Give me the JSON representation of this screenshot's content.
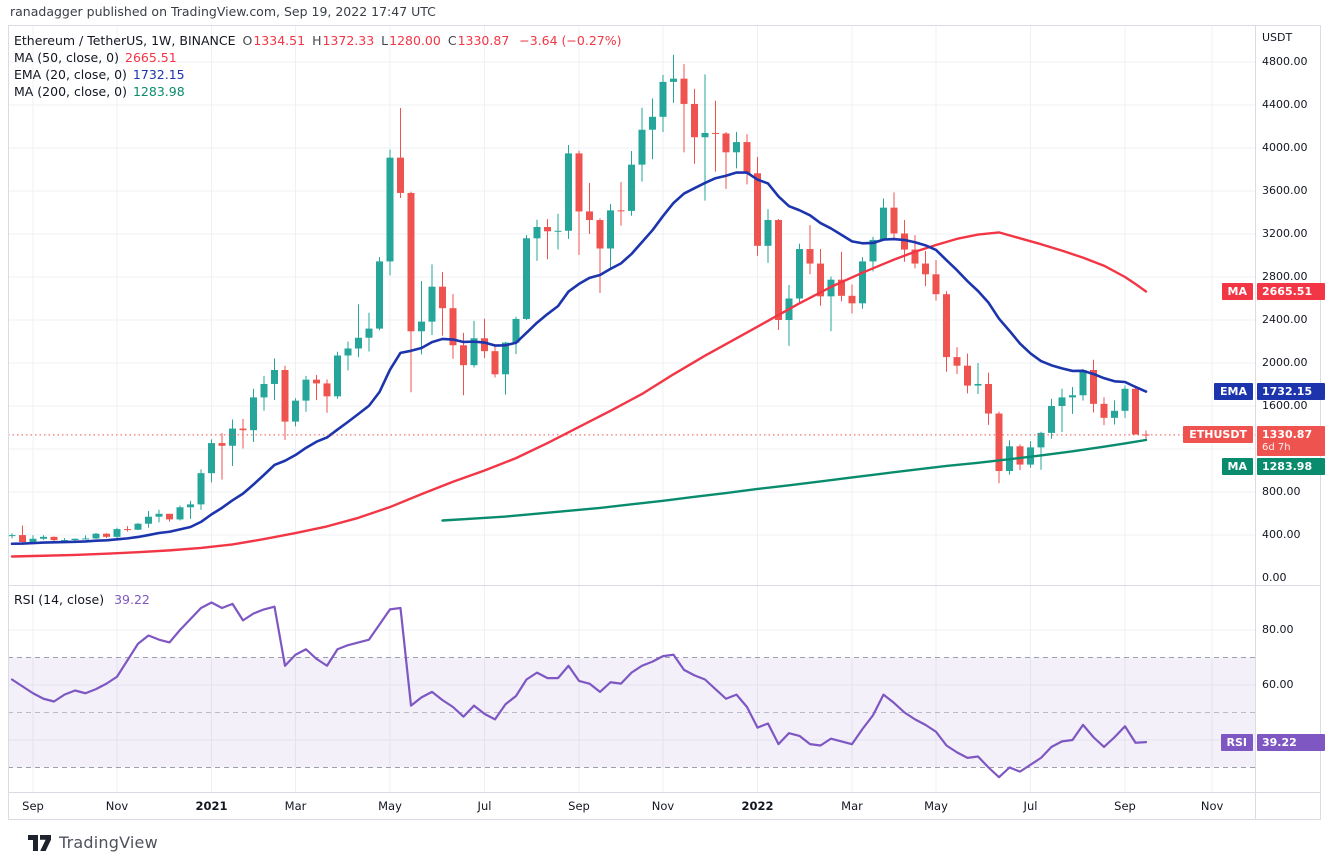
{
  "published_bar": {
    "text": "ranadagger published on TradingView.com, Sep 19, 2022 17:47 UTC"
  },
  "legend": {
    "symbol": "Ethereum / TetherUS, 1W, BINANCE",
    "ohlc": [
      {
        "k": "O",
        "v": "1334.51"
      },
      {
        "k": "H",
        "v": "1372.33"
      },
      {
        "k": "L",
        "v": "1280.00"
      },
      {
        "k": "C",
        "v": "1330.87"
      }
    ],
    "change": "−3.64 (−0.27%)",
    "indicators": [
      {
        "label": "MA (50, close, 0)",
        "value": "2665.51",
        "color": "#f23645"
      },
      {
        "label": "EMA (20, close, 0)",
        "value": "1732.15",
        "color": "#1c35ac"
      },
      {
        "label": "MA (200, close, 0)",
        "value": "1283.98",
        "color": "#098c6e"
      }
    ]
  },
  "rsi_legend": {
    "label": "RSI (14, close)",
    "value": "39.22",
    "color": "#7e57c2"
  },
  "price_axis": {
    "unit": "USDT",
    "ticks": [
      4800,
      4400,
      4000,
      3600,
      3200,
      2800,
      2400,
      2000,
      1600,
      800,
      400,
      0
    ],
    "grid_levels": [
      400,
      800,
      1200,
      1600,
      2000,
      2400,
      2800,
      3200,
      3600,
      4000,
      4400,
      4800
    ],
    "badges": [
      {
        "name": "ma50-badge",
        "label": "MA",
        "value": "2665.51",
        "color": "#f23645",
        "price": 2665.51
      },
      {
        "name": "ema20-badge",
        "label": "EMA",
        "value": "1732.15",
        "color": "#1c35ac",
        "price": 1732.15
      },
      {
        "name": "ethusdt-badge",
        "label": "ETHUSDT",
        "value": "1330.87",
        "sub": "6d 7h",
        "color": "#ef5350",
        "price": 1330.87
      },
      {
        "name": "ma200-badge",
        "label": "MA",
        "value": "1283.98",
        "color": "#098c6e",
        "price": 1283.98,
        "y_override": 466
      }
    ]
  },
  "rsi_axis": {
    "ticks": [
      80,
      60
    ],
    "grid": [
      80,
      60,
      40
    ],
    "dashed_levels": [
      70,
      50,
      30
    ],
    "band": [
      30,
      70
    ],
    "badge": {
      "label": "RSI",
      "value": "39.22",
      "color": "#7e57c2",
      "level": 39.22
    }
  },
  "footer": {
    "brand": "TradingView"
  },
  "chart_data": {
    "type": "candlestick",
    "title": "Ethereum / TetherUS, 1W, BINANCE",
    "interval": "1W",
    "ylabel": "USDT",
    "ylim": [
      0,
      5140
    ],
    "last_price": 1330.87,
    "colors": {
      "up": "#26a69a",
      "down": "#ef5350",
      "ma50": "#f23645",
      "ema20": "#1c35ac",
      "ma200": "#098c6e",
      "rsi": "#7e57c2",
      "grid": "#eef0f4",
      "border": "#d9dce3",
      "dashed": "#8b8fa0"
    },
    "time_ticks": [
      {
        "label": "Sep",
        "i": 2,
        "major": false
      },
      {
        "label": "Nov",
        "i": 10,
        "major": false
      },
      {
        "label": "2021",
        "i": 19,
        "major": true
      },
      {
        "label": "Mar",
        "i": 27,
        "major": false
      },
      {
        "label": "May",
        "i": 36,
        "major": false
      },
      {
        "label": "Jul",
        "i": 45,
        "major": false
      },
      {
        "label": "Sep",
        "i": 54,
        "major": false
      },
      {
        "label": "Nov",
        "i": 62,
        "major": false
      },
      {
        "label": "2022",
        "i": 71,
        "major": true
      },
      {
        "label": "Mar",
        "i": 80,
        "major": false
      },
      {
        "label": "May",
        "i": 88,
        "major": false
      },
      {
        "label": "Jul",
        "i": 97,
        "major": false
      },
      {
        "label": "Sep",
        "i": 106,
        "major": false
      },
      {
        "label": "Nov",
        "i": 114.3,
        "major": false
      }
    ],
    "candles": [
      [
        395,
        416,
        369,
        399
      ],
      [
        399,
        488,
        311,
        335
      ],
      [
        335,
        398,
        316,
        365
      ],
      [
        365,
        398,
        355,
        383
      ],
      [
        383,
        386,
        325,
        352
      ],
      [
        352,
        371,
        340,
        353
      ],
      [
        353,
        368,
        333,
        365
      ],
      [
        365,
        397,
        357,
        368
      ],
      [
        368,
        420,
        364,
        412
      ],
      [
        412,
        416,
        372,
        383
      ],
      [
        383,
        468,
        370,
        455
      ],
      [
        455,
        483,
        433,
        449
      ],
      [
        449,
        510,
        445,
        505
      ],
      [
        505,
        623,
        469,
        570
      ],
      [
        570,
        635,
        518,
        597
      ],
      [
        597,
        598,
        524,
        545
      ],
      [
        545,
        674,
        535,
        658
      ],
      [
        658,
        718,
        550,
        685
      ],
      [
        685,
        1011,
        634,
        975
      ],
      [
        975,
        1290,
        890,
        1255
      ],
      [
        1255,
        1348,
        915,
        1230
      ],
      [
        1230,
        1475,
        1042,
        1390
      ],
      [
        1390,
        1480,
        1205,
        1375
      ],
      [
        1375,
        1760,
        1265,
        1680
      ],
      [
        1680,
        1880,
        1556,
        1805
      ],
      [
        1805,
        2042,
        1655,
        1935
      ],
      [
        1935,
        1975,
        1285,
        1455
      ],
      [
        1455,
        1672,
        1410,
        1650
      ],
      [
        1650,
        1880,
        1547,
        1845
      ],
      [
        1845,
        1890,
        1655,
        1810
      ],
      [
        1810,
        1848,
        1537,
        1690
      ],
      [
        1690,
        2105,
        1668,
        2070
      ],
      [
        2070,
        2200,
        1930,
        2135
      ],
      [
        2135,
        2545,
        2055,
        2235
      ],
      [
        2235,
        2468,
        2107,
        2320
      ],
      [
        2320,
        2985,
        2305,
        2945
      ],
      [
        2945,
        3985,
        2815,
        3910
      ],
      [
        3910,
        4372,
        3535,
        3582
      ],
      [
        3582,
        3593,
        1728,
        2295
      ],
      [
        2295,
        2762,
        2080,
        2385
      ],
      [
        2385,
        2917,
        2260,
        2710
      ],
      [
        2710,
        2847,
        2255,
        2510
      ],
      [
        2510,
        2641,
        2040,
        2165
      ],
      [
        2165,
        2280,
        1700,
        1980
      ],
      [
        1980,
        2392,
        1958,
        2230
      ],
      [
        2230,
        2412,
        2045,
        2110
      ],
      [
        2110,
        2175,
        1865,
        1895
      ],
      [
        1895,
        2195,
        1706,
        2190
      ],
      [
        2190,
        2430,
        2083,
        2410
      ],
      [
        2410,
        3190,
        2400,
        3160
      ],
      [
        3160,
        3333,
        2950,
        3265
      ],
      [
        3265,
        3338,
        2965,
        3225
      ],
      [
        3225,
        3388,
        3057,
        3230
      ],
      [
        3230,
        4028,
        3155,
        3950
      ],
      [
        3950,
        3975,
        3005,
        3410
      ],
      [
        3410,
        3676,
        3200,
        3330
      ],
      [
        3330,
        3345,
        2651,
        3065
      ],
      [
        3065,
        3480,
        2885,
        3420
      ],
      [
        3420,
        3683,
        3278,
        3415
      ],
      [
        3415,
        3972,
        3370,
        3845
      ],
      [
        3845,
        4375,
        3688,
        4170
      ],
      [
        4170,
        4460,
        3895,
        4290
      ],
      [
        4290,
        4680,
        4148,
        4615
      ],
      [
        4615,
        4868,
        4420,
        4645
      ],
      [
        4645,
        4780,
        3959,
        4410
      ],
      [
        4410,
        4551,
        3855,
        4100
      ],
      [
        4100,
        4685,
        3510,
        4140
      ],
      [
        4140,
        4440,
        3780,
        4135
      ],
      [
        4135,
        4148,
        3620,
        3960
      ],
      [
        3960,
        4150,
        3810,
        4055
      ],
      [
        4055,
        4128,
        3662,
        3765
      ],
      [
        3765,
        3918,
        2998,
        3090
      ],
      [
        3090,
        3431,
        2931,
        3330
      ],
      [
        3330,
        3340,
        2307,
        2400
      ],
      [
        2400,
        2725,
        2159,
        2600
      ],
      [
        2600,
        3110,
        2550,
        3060
      ],
      [
        3060,
        3283,
        2825,
        2925
      ],
      [
        2925,
        3060,
        2532,
        2620
      ],
      [
        2620,
        2805,
        2296,
        2775
      ],
      [
        2775,
        3035,
        2573,
        2625
      ],
      [
        2625,
        2730,
        2460,
        2555
      ],
      [
        2555,
        2985,
        2505,
        2945
      ],
      [
        2945,
        3175,
        2852,
        3145
      ],
      [
        3145,
        3530,
        3139,
        3445
      ],
      [
        3445,
        3587,
        3147,
        3205
      ],
      [
        3205,
        3330,
        2942,
        3055
      ],
      [
        3055,
        3188,
        2880,
        2925
      ],
      [
        2925,
        3042,
        2715,
        2825
      ],
      [
        2825,
        2958,
        2580,
        2640
      ],
      [
        2640,
        2668,
        1920,
        2055
      ],
      [
        2055,
        2147,
        1898,
        1975
      ],
      [
        1975,
        2087,
        1718,
        1790
      ],
      [
        1790,
        2000,
        1712,
        1805
      ],
      [
        1805,
        1911,
        1424,
        1530
      ],
      [
        1530,
        1548,
        881,
        995
      ],
      [
        995,
        1282,
        962,
        1225
      ],
      [
        1225,
        1243,
        1002,
        1055
      ],
      [
        1055,
        1272,
        1025,
        1215
      ],
      [
        1215,
        1360,
        1006,
        1350
      ],
      [
        1350,
        1668,
        1295,
        1600
      ],
      [
        1600,
        1760,
        1357,
        1680
      ],
      [
        1680,
        1777,
        1527,
        1700
      ],
      [
        1700,
        1944,
        1650,
        1935
      ],
      [
        1935,
        2030,
        1540,
        1620
      ],
      [
        1620,
        1682,
        1422,
        1490
      ],
      [
        1490,
        1652,
        1428,
        1555
      ],
      [
        1555,
        1790,
        1490,
        1760
      ],
      [
        1760,
        1792,
        1380,
        1335
      ],
      [
        1334.51,
        1372.33,
        1280.0,
        1330.87
      ]
    ],
    "series": [
      {
        "name": "MA 50",
        "color": "#f23645",
        "points": [
          [
            0,
            200
          ],
          [
            3,
            207
          ],
          [
            6,
            215
          ],
          [
            9,
            226
          ],
          [
            12,
            240
          ],
          [
            15,
            257
          ],
          [
            18,
            280
          ],
          [
            21,
            312
          ],
          [
            24,
            362
          ],
          [
            27,
            418
          ],
          [
            30,
            480
          ],
          [
            33,
            560
          ],
          [
            36,
            660
          ],
          [
            39,
            780
          ],
          [
            42,
            895
          ],
          [
            45,
            1000
          ],
          [
            48,
            1115
          ],
          [
            51,
            1255
          ],
          [
            54,
            1405
          ],
          [
            57,
            1555
          ],
          [
            60,
            1712
          ],
          [
            63,
            1895
          ],
          [
            66,
            2068
          ],
          [
            69,
            2230
          ],
          [
            72,
            2392
          ],
          [
            75,
            2555
          ],
          [
            78,
            2708
          ],
          [
            81,
            2840
          ],
          [
            84,
            2962
          ],
          [
            86,
            3035
          ],
          [
            88,
            3098
          ],
          [
            90,
            3155
          ],
          [
            92,
            3195
          ],
          [
            94,
            3215
          ],
          [
            96,
            3160
          ],
          [
            98,
            3105
          ],
          [
            100,
            3045
          ],
          [
            102,
            2980
          ],
          [
            104,
            2905
          ],
          [
            106,
            2800
          ],
          [
            107,
            2735
          ],
          [
            108,
            2665.51
          ]
        ]
      },
      {
        "name": "MA 200",
        "color": "#098c6e",
        "points": [
          [
            41,
            535
          ],
          [
            44,
            553
          ],
          [
            47,
            572
          ],
          [
            50,
            598
          ],
          [
            53,
            625
          ],
          [
            56,
            652
          ],
          [
            59,
            685
          ],
          [
            62,
            718
          ],
          [
            65,
            755
          ],
          [
            68,
            790
          ],
          [
            71,
            828
          ],
          [
            74,
            862
          ],
          [
            77,
            898
          ],
          [
            80,
            935
          ],
          [
            83,
            972
          ],
          [
            86,
            1008
          ],
          [
            89,
            1042
          ],
          [
            92,
            1072
          ],
          [
            95,
            1105
          ],
          [
            98,
            1140
          ],
          [
            101,
            1178
          ],
          [
            104,
            1222
          ],
          [
            106,
            1252
          ],
          [
            108,
            1283.98
          ]
        ]
      }
    ],
    "ema20": {
      "name": "EMA 20",
      "color": "#1c35ac",
      "seed": 310,
      "length": 20,
      "final": 1732.15
    },
    "rsi": {
      "length": 14,
      "final": 39.22,
      "values": [
        62,
        59.5,
        57,
        55,
        54,
        56.5,
        58,
        57,
        58.5,
        60.5,
        63,
        69,
        75,
        78,
        76.5,
        75.5,
        80,
        84,
        88,
        90,
        88,
        89.5,
        83.5,
        86,
        87.5,
        88.5,
        67,
        71,
        73,
        69.5,
        67,
        73,
        74.5,
        75.5,
        76.5,
        82,
        87.5,
        88,
        52.5,
        55.5,
        57.5,
        54.5,
        52,
        48.5,
        52.5,
        49.5,
        47.5,
        53,
        56,
        62,
        64.5,
        62.5,
        62.5,
        67,
        61.5,
        60.5,
        57.5,
        61,
        60.5,
        64.5,
        67,
        68.5,
        70.5,
        71,
        65.5,
        63.5,
        62,
        58.5,
        55,
        56.5,
        52,
        44.5,
        46,
        38.5,
        42.5,
        41.5,
        38.5,
        38,
        40.5,
        39.5,
        38.5,
        44,
        49,
        56.5,
        53.5,
        50,
        47.5,
        45.5,
        43,
        38,
        35.5,
        33.5,
        34,
        30,
        26.5,
        30,
        28.5,
        31,
        33.5,
        37.5,
        39.5,
        40,
        45.5,
        41,
        37.5,
        41,
        45,
        39,
        39.22
      ]
    }
  }
}
